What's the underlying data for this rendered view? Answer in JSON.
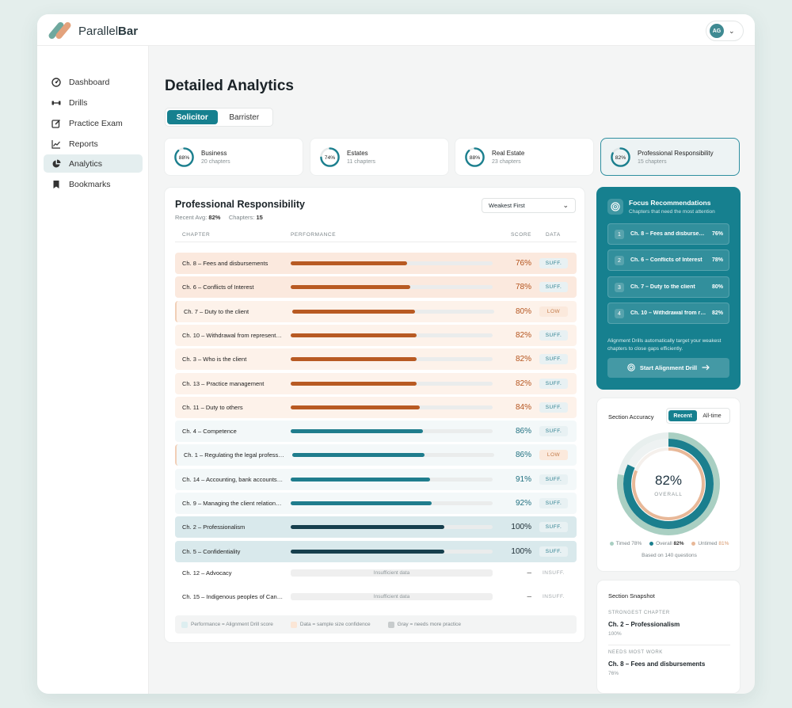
{
  "app": {
    "brand_light": "Parallel",
    "brand_bold": "Bar",
    "user_initials": "AG"
  },
  "sidebar": {
    "items": [
      {
        "label": "Dashboard",
        "icon": "dashboard-icon"
      },
      {
        "label": "Drills",
        "icon": "dumbbell-icon"
      },
      {
        "label": "Practice Exam",
        "icon": "edit-icon"
      },
      {
        "label": "Reports",
        "icon": "chart-line-icon"
      },
      {
        "label": "Analytics",
        "icon": "pie-chart-icon",
        "active": true
      },
      {
        "label": "Bookmarks",
        "icon": "bookmark-icon"
      }
    ]
  },
  "page": {
    "title": "Detailed Analytics"
  },
  "tabs": {
    "solicitor": "Solicitor",
    "barrister": "Barrister"
  },
  "sections": [
    {
      "pct": "88%",
      "value": 88,
      "name": "Business",
      "chapters": "20 chapters"
    },
    {
      "pct": "74%",
      "value": 74,
      "name": "Estates",
      "chapters": "11 chapters"
    },
    {
      "pct": "88%",
      "value": 88,
      "name": "Real Estate",
      "chapters": "23 chapters"
    },
    {
      "pct": "82%",
      "value": 82,
      "name": "Professional Responsibility",
      "chapters": "15 chapters",
      "selected": true
    }
  ],
  "table": {
    "title": "Professional Responsibility",
    "recent_avg_label": "Recent Avg:",
    "recent_avg": "82%",
    "chapters_label": "Chapters:",
    "chapters": "15",
    "sort": "Weakest First",
    "headers": {
      "chapter": "CHAPTER",
      "performance": "PERFORMANCE",
      "score": "SCORE",
      "data": "DATA"
    },
    "rows": [
      {
        "name": "Ch. 8 – Fees and disbursements",
        "score": 76,
        "score_label": "76%",
        "data": "SUFF."
      },
      {
        "name": "Ch. 6 – Conflicts of Interest",
        "score": 78,
        "score_label": "78%",
        "data": "SUFF."
      },
      {
        "name": "Ch. 7 – Duty to the client",
        "score": 80,
        "score_label": "80%",
        "data": "LOW"
      },
      {
        "name": "Ch. 10 – Withdrawal from representation",
        "score": 82,
        "score_label": "82%",
        "data": "SUFF."
      },
      {
        "name": "Ch. 3 – Who is the client",
        "score": 82,
        "score_label": "82%",
        "data": "SUFF."
      },
      {
        "name": "Ch. 13 – Practice management",
        "score": 82,
        "score_label": "82%",
        "data": "SUFF."
      },
      {
        "name": "Ch. 11 – Duty to others",
        "score": 84,
        "score_label": "84%",
        "data": "SUFF."
      },
      {
        "name": "Ch. 4 – Competence",
        "score": 86,
        "score_label": "86%",
        "data": "SUFF."
      },
      {
        "name": "Ch. 1 – Regulating the legal profession",
        "score": 86,
        "score_label": "86%",
        "data": "LOW"
      },
      {
        "name": "Ch. 14 – Accounting, bank accounts and trust",
        "score": 91,
        "score_label": "91%",
        "data": "SUFF."
      },
      {
        "name": "Ch. 9 – Managing the client relationship",
        "score": 92,
        "score_label": "92%",
        "data": "SUFF."
      },
      {
        "name": "Ch. 2 – Professionalism",
        "score": 100,
        "score_label": "100%",
        "data": "SUFF."
      },
      {
        "name": "Ch. 5 – Confidentiality",
        "score": 100,
        "score_label": "100%",
        "data": "SUFF."
      }
    ],
    "insufficient_rows": [
      {
        "name": "Ch. 12 – Advocacy",
        "bar_text": "Insufficient data",
        "score": "–",
        "data": "INSUFF."
      },
      {
        "name": "Ch. 15 – Indigenous peoples of Canada",
        "bar_text": "Insufficient data",
        "score": "–",
        "data": "INSUFF."
      }
    ],
    "legend": {
      "performance": "Performance = Alignment Drill score",
      "data": "Data = sample size confidence",
      "gray": "Gray = needs more practice"
    }
  },
  "focus": {
    "title": "Focus Recommendations",
    "subtitle": "Chapters that need the most attention",
    "items": [
      {
        "num": "1",
        "name": "Ch. 8 – Fees and disbursements",
        "score": "76%"
      },
      {
        "num": "2",
        "name": "Ch. 6 – Conflicts of Interest",
        "score": "78%"
      },
      {
        "num": "3",
        "name": "Ch. 7 – Duty to the client",
        "score": "80%"
      },
      {
        "num": "4",
        "name": "Ch. 10 – Withdrawal from representation",
        "score": "82%"
      }
    ],
    "note": "Alignment Drills automatically target your weakest chapters to close gaps efficiently.",
    "button": "Start Alignment Drill"
  },
  "accuracy": {
    "title": "Section Accuracy",
    "toggle_recent": "Recent",
    "toggle_all": "All-time",
    "overall_value": "82%",
    "overall_label": "OVERALL",
    "timed_label": "Timed",
    "timed": "78%",
    "overall_legend_label": "Overall",
    "overall": "82%",
    "untimed_label": "Untimed",
    "untimed": "81%",
    "timed_value": 78,
    "overall_num": 82,
    "untimed_value": 81,
    "based_on": "Based on 140 questions"
  },
  "snapshot": {
    "title": "Section Snapshot",
    "strongest_label": "STRONGEST CHAPTER",
    "strongest_name": "Ch. 2 – Professionalism",
    "strongest_score": "100%",
    "weakest_label": "NEEDS MOST WORK",
    "weakest_name": "Ch. 8 – Fees and disbursements",
    "weakest_score": "76%"
  },
  "colors": {
    "teal": "#16808f",
    "orange_fill": "#b85a22",
    "teal_fill": "#1f7d8d",
    "dark_fill": "#163f4d",
    "peach": "#e8b898",
    "sage": "#a9cfc2"
  }
}
